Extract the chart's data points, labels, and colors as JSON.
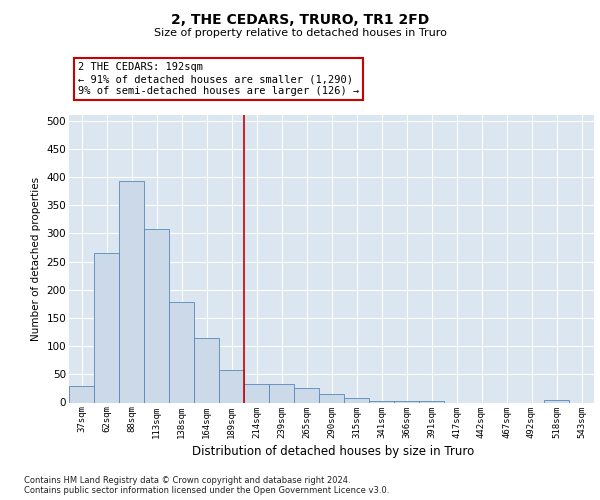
{
  "title": "2, THE CEDARS, TRURO, TR1 2FD",
  "subtitle": "Size of property relative to detached houses in Truro",
  "xlabel": "Distribution of detached houses by size in Truro",
  "ylabel": "Number of detached properties",
  "bar_color": "#ccd9e8",
  "bar_edge_color": "#5588bb",
  "categories": [
    "37sqm",
    "62sqm",
    "88sqm",
    "113sqm",
    "138sqm",
    "164sqm",
    "189sqm",
    "214sqm",
    "239sqm",
    "265sqm",
    "290sqm",
    "315sqm",
    "341sqm",
    "366sqm",
    "391sqm",
    "417sqm",
    "442sqm",
    "467sqm",
    "492sqm",
    "518sqm",
    "543sqm"
  ],
  "values": [
    30,
    265,
    393,
    307,
    178,
    115,
    58,
    33,
    33,
    25,
    15,
    8,
    2,
    2,
    2,
    0,
    0,
    0,
    0,
    5,
    0
  ],
  "vline_index": 6.5,
  "vline_color": "#cc0000",
  "ann_line1": "2 THE CEDARS: 192sqm",
  "ann_line2": "← 91% of detached houses are smaller (1,290)",
  "ann_line3": "9% of semi-detached houses are larger (126) →",
  "annotation_box_color": "#cc0000",
  "annotation_box_fill": "#ffffff",
  "ylim": [
    0,
    510
  ],
  "yticks": [
    0,
    50,
    100,
    150,
    200,
    250,
    300,
    350,
    400,
    450,
    500
  ],
  "footer_text": "Contains HM Land Registry data © Crown copyright and database right 2024.\nContains public sector information licensed under the Open Government Licence v3.0.",
  "grid_color": "#ffffff",
  "plot_bg_color": "#dce6f0"
}
